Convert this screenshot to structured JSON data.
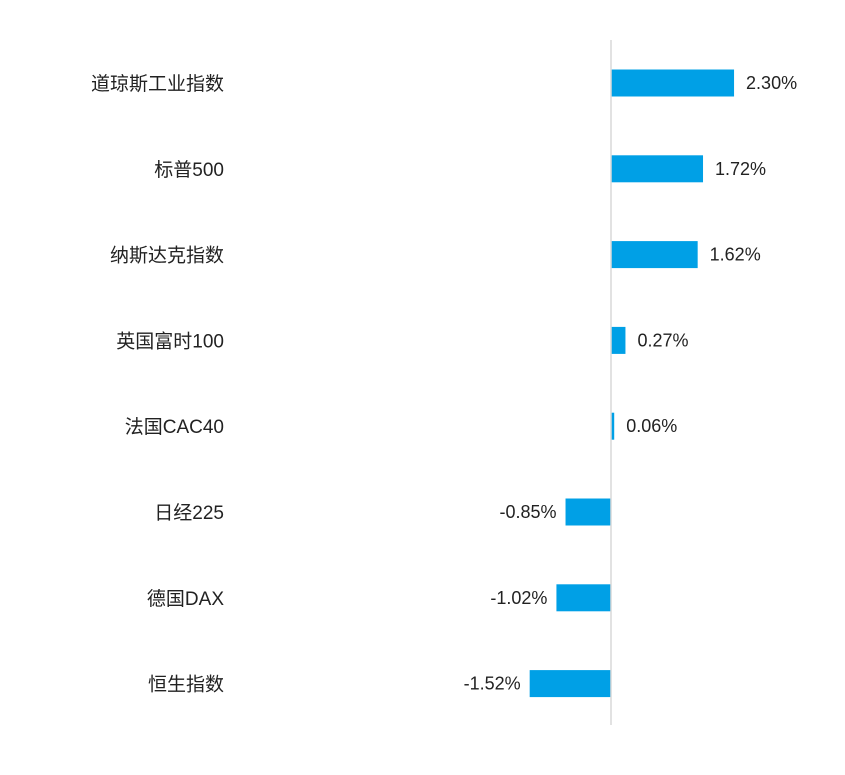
{
  "chart_data": {
    "type": "bar",
    "orientation": "horizontal",
    "categories": [
      "道琼斯工业指数",
      "标普500",
      "纳斯达克指数",
      "英国富时100",
      "法国CAC40",
      "日经225",
      "德国DAX",
      "恒生指数"
    ],
    "values": [
      2.3,
      1.72,
      1.62,
      0.27,
      0.06,
      -0.85,
      -1.02,
      -1.52
    ],
    "value_labels": [
      "2.30%",
      "1.72%",
      "1.62%",
      "0.27%",
      "0.06%",
      "-0.85%",
      "-1.02%",
      "-1.52%"
    ],
    "unit": "%",
    "bar_color": "#00a0e6",
    "axis_color": "#d9d9d9",
    "grid": false,
    "legend": "none"
  }
}
